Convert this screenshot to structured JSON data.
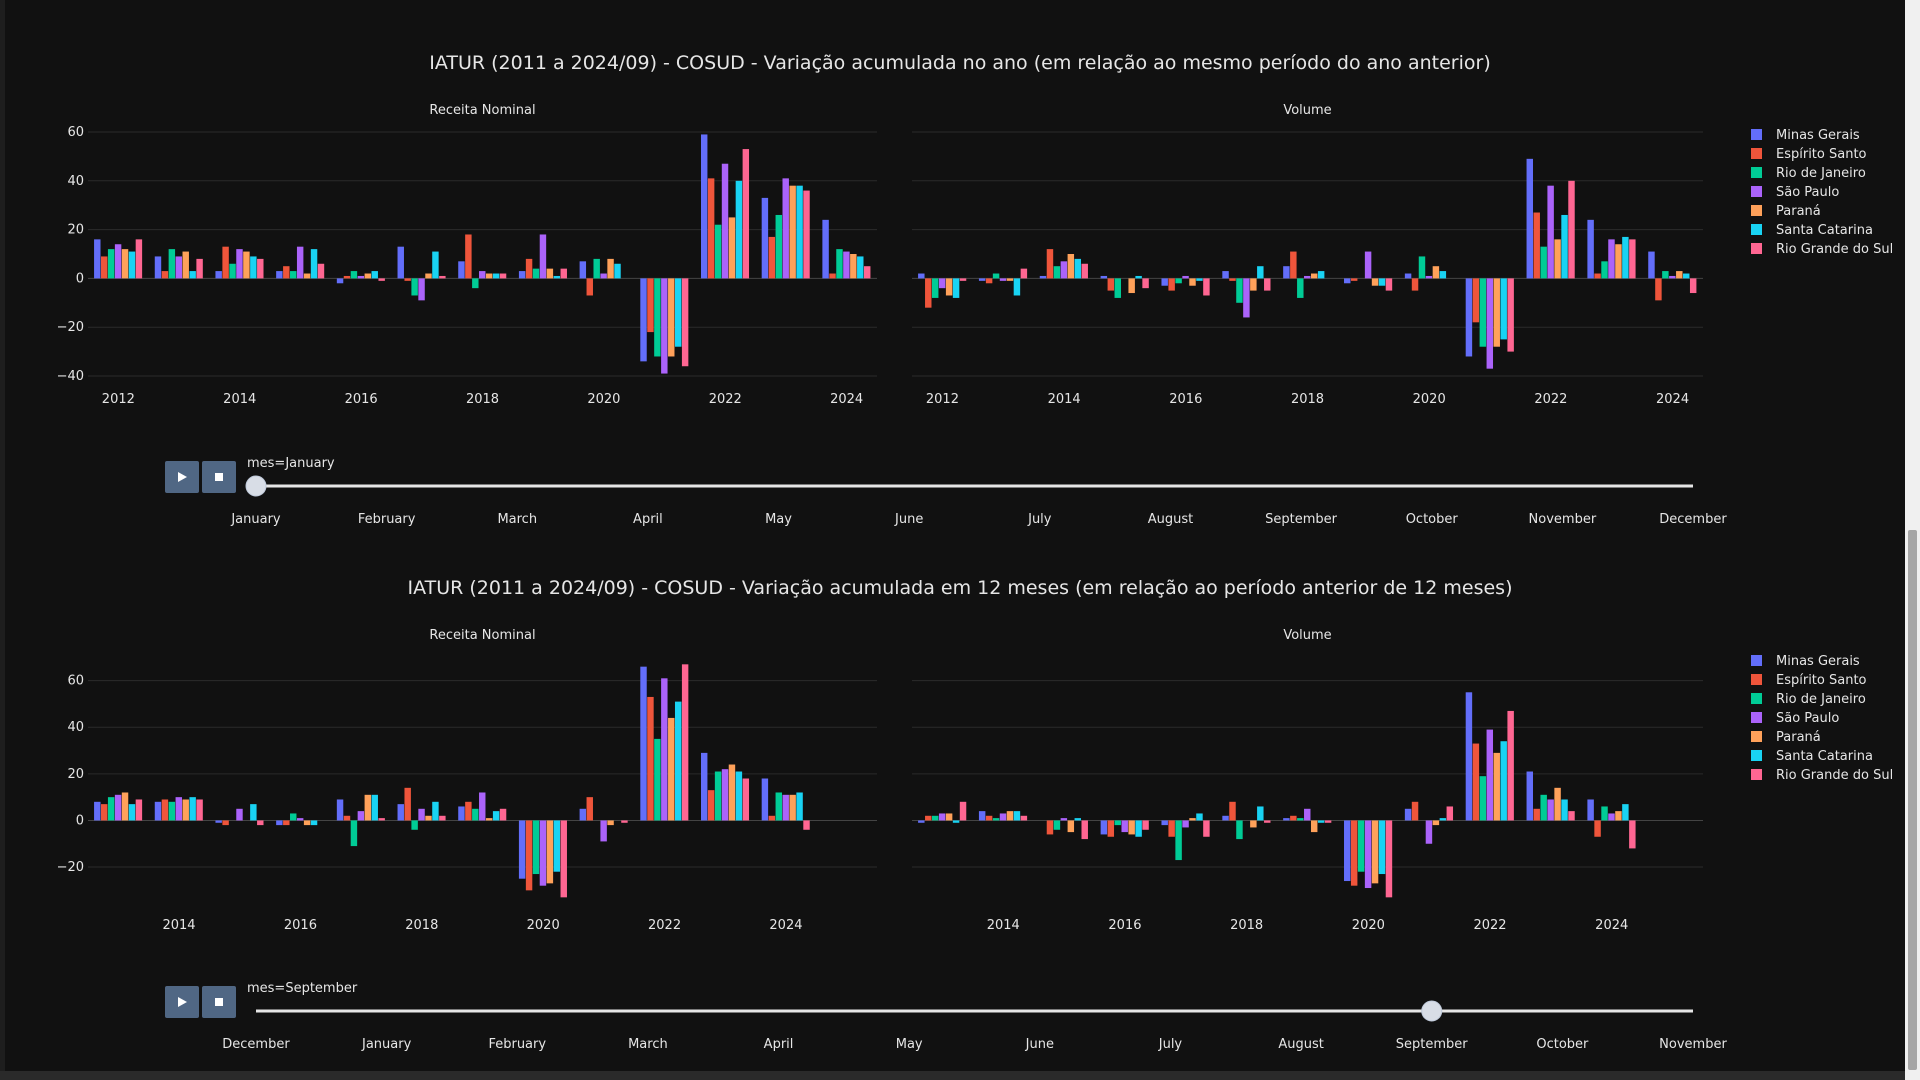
{
  "colors": {
    "background": "#111111",
    "grid": "#2b2b2b",
    "text": "#e6e6e6",
    "button": "#506784",
    "slider_track": "#e6e6e6",
    "slider_thumb": "#d8dde6"
  },
  "legend": [
    {
      "name": "Minas Gerais",
      "color": "#636efa"
    },
    {
      "name": "Espírito Santo",
      "color": "#ef553b"
    },
    {
      "name": "Rio de Janeiro",
      "color": "#00cc96"
    },
    {
      "name": "São Paulo",
      "color": "#ab63fa"
    },
    {
      "name": "Paraná",
      "color": "#ffa15a"
    },
    {
      "name": "Santa Catarina",
      "color": "#19d3f3"
    },
    {
      "name": "Rio Grande do Sul",
      "color": "#ff6692"
    }
  ],
  "chart_data": [
    {
      "type": "bar",
      "title": "IATUR (2011 a 2024/09) - COSUD - Variação acumulada no ano (em relação ao mesmo período do ano anterior)",
      "slider": {
        "current_label": "mes=January",
        "active_index": 0,
        "steps": [
          "January",
          "February",
          "March",
          "April",
          "May",
          "June",
          "July",
          "August",
          "September",
          "October",
          "November",
          "December"
        ]
      },
      "panels": [
        {
          "subtitle": "Receita Nominal",
          "x": [
            2012,
            2013,
            2014,
            2015,
            2016,
            2017,
            2018,
            2019,
            2020,
            2021,
            2022,
            2023,
            2024
          ],
          "xticks": [
            2012,
            2014,
            2016,
            2018,
            2020,
            2022,
            2024
          ],
          "ylim": [
            -40,
            60
          ],
          "yticks": [
            -40,
            -20,
            0,
            20,
            40,
            60
          ],
          "series": [
            {
              "name": "Minas Gerais",
              "values": [
                16,
                9,
                3,
                3,
                -2,
                13,
                7,
                3,
                7,
                -34,
                59,
                33,
                24
              ]
            },
            {
              "name": "Espírito Santo",
              "values": [
                9,
                3,
                13,
                5,
                1,
                -1,
                18,
                8,
                -7,
                -22,
                41,
                17,
                2
              ]
            },
            {
              "name": "Rio de Janeiro",
              "values": [
                12,
                12,
                6,
                3,
                3,
                -7,
                -4,
                4,
                8,
                -32,
                22,
                26,
                12
              ]
            },
            {
              "name": "São Paulo",
              "values": [
                14,
                9,
                12,
                13,
                1,
                -9,
                3,
                18,
                2,
                -39,
                47,
                41,
                11
              ]
            },
            {
              "name": "Paraná",
              "values": [
                12,
                11,
                11,
                2,
                2,
                2,
                2,
                4,
                8,
                -32,
                25,
                38,
                10
              ]
            },
            {
              "name": "Santa Catarina",
              "values": [
                11,
                3,
                9,
                12,
                3,
                11,
                2,
                1,
                6,
                -28,
                40,
                38,
                9
              ]
            },
            {
              "name": "Rio Grande do Sul",
              "values": [
                16,
                8,
                8,
                6,
                -1,
                1,
                2,
                4,
                0,
                -36,
                53,
                36,
                5
              ]
            }
          ]
        },
        {
          "subtitle": "Volume",
          "x": [
            2012,
            2013,
            2014,
            2015,
            2016,
            2017,
            2018,
            2019,
            2020,
            2021,
            2022,
            2023,
            2024
          ],
          "xticks": [
            2012,
            2014,
            2016,
            2018,
            2020,
            2022,
            2024
          ],
          "ylim": [
            -40,
            60
          ],
          "series": [
            {
              "name": "Minas Gerais",
              "values": [
                2,
                -1,
                1,
                1,
                -3,
                3,
                5,
                -2,
                2,
                -32,
                49,
                24,
                11
              ]
            },
            {
              "name": "Espírito Santo",
              "values": [
                -12,
                -2,
                12,
                -5,
                -5,
                -1,
                11,
                -1,
                -5,
                -18,
                27,
                2,
                -9
              ]
            },
            {
              "name": "Rio de Janeiro",
              "values": [
                -8,
                2,
                5,
                -8,
                -2,
                -10,
                -8,
                0,
                9,
                -28,
                13,
                7,
                3
              ]
            },
            {
              "name": "São Paulo",
              "values": [
                -4,
                -1,
                7,
                0,
                1,
                -16,
                1,
                11,
                1,
                -37,
                38,
                16,
                1
              ]
            },
            {
              "name": "Paraná",
              "values": [
                -7,
                -1,
                10,
                -6,
                -3,
                -5,
                2,
                -3,
                5,
                -28,
                16,
                14,
                3
              ]
            },
            {
              "name": "Santa Catarina",
              "values": [
                -8,
                -7,
                8,
                1,
                -1,
                5,
                3,
                -3,
                3,
                -25,
                26,
                17,
                2
              ]
            },
            {
              "name": "Rio Grande do Sul",
              "values": [
                -1,
                4,
                6,
                -4,
                -7,
                -5,
                0,
                -5,
                0,
                -30,
                40,
                16,
                -6
              ]
            }
          ]
        }
      ]
    },
    {
      "type": "bar",
      "title": "IATUR (2011 a 2024/09) - COSUD - Variação acumulada em 12 meses (em relação ao período anterior de 12 meses)",
      "slider": {
        "current_label": "mes=September",
        "active_index": 9,
        "steps": [
          "December",
          "January",
          "February",
          "March",
          "April",
          "May",
          "June",
          "July",
          "August",
          "September",
          "October",
          "November"
        ]
      },
      "panels": [
        {
          "subtitle": "Receita Nominal",
          "x": [
            2013,
            2014,
            2015,
            2016,
            2017,
            2018,
            2019,
            2020,
            2021,
            2022,
            2023,
            2024,
            2025
          ],
          "xticks": [
            2014,
            2016,
            2018,
            2020,
            2022,
            2024
          ],
          "ylim": [
            -35,
            68
          ],
          "yticks": [
            -20,
            0,
            20,
            40,
            60
          ],
          "series": [
            {
              "name": "Minas Gerais",
              "values": [
                8,
                8,
                -1,
                -2,
                9,
                7,
                6,
                -25,
                5,
                66,
                29,
                18,
                0
              ]
            },
            {
              "name": "Espírito Santo",
              "values": [
                7,
                9,
                -2,
                -2,
                2,
                14,
                8,
                -30,
                10,
                53,
                13,
                2,
                0
              ]
            },
            {
              "name": "Rio de Janeiro",
              "values": [
                10,
                8,
                0,
                3,
                -11,
                -4,
                5,
                -23,
                0,
                35,
                21,
                12,
                0
              ]
            },
            {
              "name": "São Paulo",
              "values": [
                11,
                10,
                5,
                1,
                4,
                5,
                12,
                -28,
                -9,
                61,
                22,
                11,
                0
              ]
            },
            {
              "name": "Paraná",
              "values": [
                12,
                9,
                0,
                -2,
                11,
                2,
                1,
                -27,
                -2,
                44,
                24,
                11,
                0
              ]
            },
            {
              "name": "Santa Catarina",
              "values": [
                7,
                10,
                7,
                -2,
                11,
                8,
                4,
                -22,
                0,
                51,
                21,
                12,
                0
              ]
            },
            {
              "name": "Rio Grande do Sul",
              "values": [
                9,
                9,
                -2,
                0,
                1,
                2,
                5,
                -33,
                -1,
                67,
                18,
                -4,
                0
              ]
            }
          ]
        },
        {
          "subtitle": "Volume",
          "x": [
            2013,
            2014,
            2015,
            2016,
            2017,
            2018,
            2019,
            2020,
            2021,
            2022,
            2023,
            2024,
            2025
          ],
          "xticks": [
            2014,
            2016,
            2018,
            2020,
            2022,
            2024
          ],
          "ylim": [
            -35,
            68
          ],
          "series": [
            {
              "name": "Minas Gerais",
              "values": [
                -1,
                4,
                0,
                -6,
                -2,
                2,
                1,
                -26,
                5,
                55,
                21,
                9,
                0
              ]
            },
            {
              "name": "Espírito Santo",
              "values": [
                2,
                2,
                -6,
                -7,
                -7,
                8,
                2,
                -28,
                8,
                33,
                5,
                -7,
                0
              ]
            },
            {
              "name": "Rio de Janeiro",
              "values": [
                2,
                1,
                -4,
                -2,
                -17,
                -8,
                1,
                -22,
                0,
                19,
                11,
                6,
                0
              ]
            },
            {
              "name": "São Paulo",
              "values": [
                3,
                3,
                1,
                -5,
                -3,
                0,
                5,
                -29,
                -10,
                39,
                9,
                3,
                0
              ]
            },
            {
              "name": "Paraná",
              "values": [
                3,
                4,
                -5,
                -6,
                1,
                -3,
                -5,
                -27,
                -2,
                29,
                14,
                4,
                0
              ]
            },
            {
              "name": "Santa Catarina",
              "values": [
                -1,
                4,
                1,
                -7,
                3,
                6,
                -1,
                -23,
                1,
                34,
                9,
                7,
                0
              ]
            },
            {
              "name": "Rio Grande do Sul",
              "values": [
                8,
                2,
                -8,
                -4,
                -7,
                -1,
                -1,
                -33,
                6,
                47,
                4,
                -12,
                0
              ]
            }
          ]
        }
      ]
    }
  ]
}
